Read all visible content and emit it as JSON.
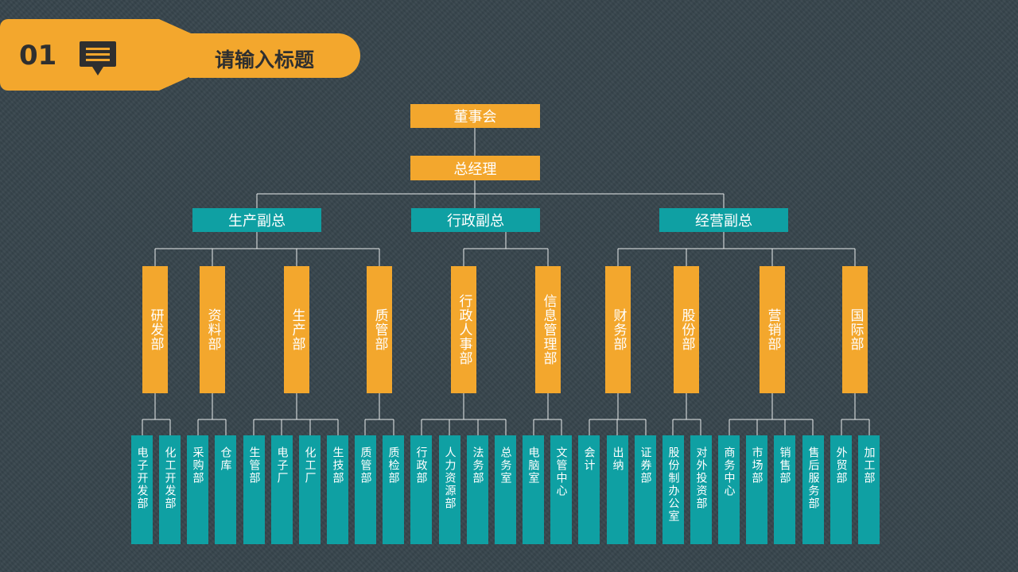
{
  "header": {
    "number": "01",
    "title": "请输入标题",
    "icon": "comment-icon"
  },
  "colors": {
    "orange": "#f3a72d",
    "teal": "#0fa0a3",
    "line": "#e9ecec",
    "background": "#37454c"
  },
  "org": {
    "board": "董事会",
    "gm": "总经理",
    "vps": [
      "生产副总",
      "行政副总",
      "经营副总"
    ],
    "departments": [
      "研发部",
      "资料部",
      "生产部",
      "质管部",
      "行政人事部",
      "信息管理部",
      "财务部",
      "股份部",
      "营销部",
      "国际部"
    ],
    "units": [
      "电子开发部",
      "化工开发部",
      "采购部",
      "仓库",
      "生管部",
      "电子厂",
      "化工厂",
      "生技部",
      "质管部",
      "质检部",
      "行政部",
      "人力资源部",
      "法务部",
      "总务室",
      "电脑室",
      "文管中心",
      "会计",
      "出纳",
      "证券部",
      "股份制办公室",
      "对外投资部",
      "商务中心",
      "市场部",
      "销售部",
      "售后服务部",
      "外贸部",
      "加工部"
    ]
  }
}
